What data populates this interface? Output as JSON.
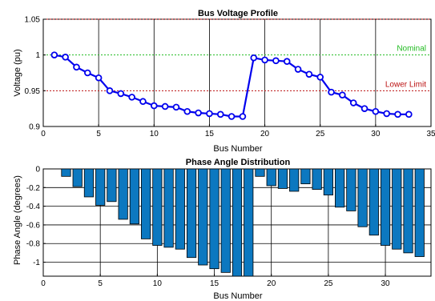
{
  "chart_data": [
    {
      "type": "line",
      "title": "Bus Voltage Profile",
      "xlabel": "Bus Number",
      "ylabel": "Voltage (pu)",
      "xlim": [
        0,
        35
      ],
      "ylim": [
        0.9,
        1.05
      ],
      "xticks": [
        0,
        5,
        10,
        15,
        20,
        25,
        30,
        35
      ],
      "yticks": [
        0.9,
        0.95,
        1,
        1.05
      ],
      "x_grid": true,
      "series": [
        {
          "color": "#0000ee",
          "marker": "circle",
          "x": [
            1,
            2,
            3,
            4,
            5,
            6,
            7,
            8,
            9,
            10,
            11,
            12,
            13,
            14,
            15,
            16,
            17,
            18,
            19,
            20,
            21,
            22,
            23,
            24,
            25,
            26,
            27,
            28,
            29,
            30,
            31,
            32,
            33
          ],
          "values": [
            1.0,
            0.997,
            0.983,
            0.975,
            0.968,
            0.95,
            0.946,
            0.941,
            0.935,
            0.929,
            0.928,
            0.927,
            0.921,
            0.919,
            0.918,
            0.917,
            0.914,
            0.914,
            0.996,
            0.993,
            0.992,
            0.991,
            0.98,
            0.973,
            0.969,
            0.948,
            0.944,
            0.933,
            0.925,
            0.921,
            0.918,
            0.917,
            0.917
          ]
        }
      ],
      "reference_lines": [
        {
          "y": 1.0,
          "label": "Nominal",
          "color": "#22bb22"
        },
        {
          "y": 0.95,
          "label": "Lower Limit",
          "color": "#bb1111"
        },
        {
          "y": 1.05,
          "label": "",
          "color": "#bb1111"
        }
      ]
    },
    {
      "type": "bar",
      "title": "Phase Angle Distribution",
      "xlabel": "Bus Number",
      "ylabel": "Phase Angle (degrees)",
      "xlim": [
        0,
        34
      ],
      "ylim": [
        -1.15,
        0
      ],
      "xticks": [
        0,
        5,
        10,
        15,
        20,
        25,
        30
      ],
      "yticks": [
        0,
        -0.2,
        -0.4,
        -0.6,
        -0.8,
        -1
      ],
      "grid": true,
      "bar_color": "#0c78c0",
      "x": [
        1,
        2,
        3,
        4,
        5,
        6,
        7,
        8,
        9,
        10,
        11,
        12,
        13,
        14,
        15,
        16,
        17,
        18,
        19,
        20,
        21,
        22,
        23,
        24,
        25,
        26,
        27,
        28,
        29,
        30,
        31,
        32,
        33
      ],
      "values": [
        0,
        -0.08,
        -0.19,
        -0.3,
        -0.39,
        -0.35,
        -0.54,
        -0.59,
        -0.75,
        -0.82,
        -0.84,
        -0.86,
        -0.95,
        -1.03,
        -1.07,
        -1.11,
        -1.15,
        -1.15,
        -0.08,
        -0.18,
        -0.21,
        -0.24,
        -0.16,
        -0.22,
        -0.28,
        -0.41,
        -0.45,
        -0.62,
        -0.71,
        -0.82,
        -0.86,
        -0.9,
        -0.94
      ]
    }
  ]
}
